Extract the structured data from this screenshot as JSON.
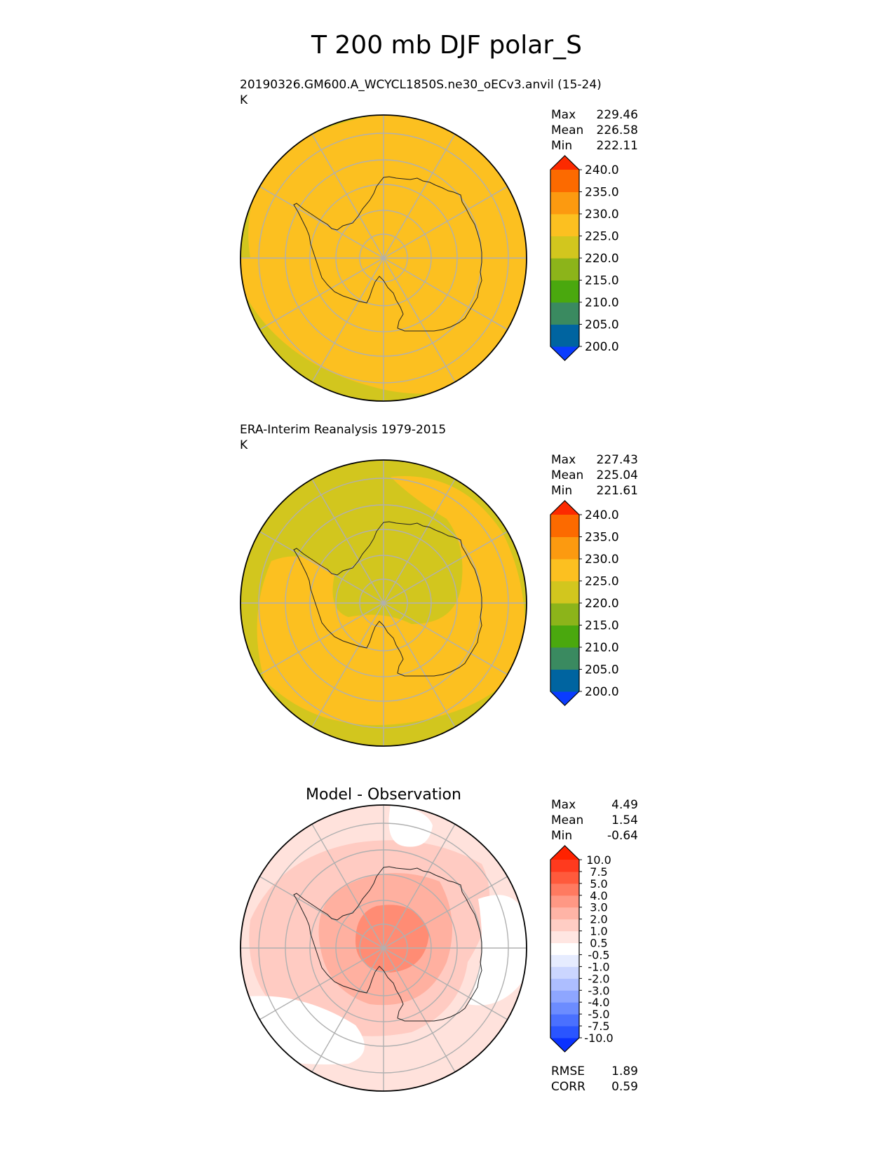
{
  "figure": {
    "title": "T 200 mb DJF polar_S"
  },
  "chart_data": [
    {
      "type": "heatmap",
      "projection": "south-polar-stereographic",
      "title": "20190326.GM600.A_WCYCL1850S.ne30_oECv3.anvil (15-24)",
      "units": "K",
      "stats": [
        {
          "label": "Max",
          "value": "229.46"
        },
        {
          "label": "Mean",
          "value": "226.58"
        },
        {
          "label": "Min",
          "value": "222.11"
        }
      ],
      "colorbar": {
        "levels": [
          "200.0",
          "205.0",
          "210.0",
          "215.0",
          "220.0",
          "225.0",
          "230.0",
          "235.0",
          "240.0"
        ],
        "colors": [
          "#0a3cff",
          "#0064a0",
          "#3a8a60",
          "#4aa80e",
          "#8cb41a",
          "#d2c61e",
          "#fcc020",
          "#fc9a10",
          "#fc6a00",
          "#fc2a00"
        ],
        "extend": "both"
      },
      "field_description_colors": {
        "background": "#fcc020",
        "ring": "#d2c61e"
      }
    },
    {
      "type": "heatmap",
      "projection": "south-polar-stereographic",
      "title": "ERA-Interim Reanalysis 1979-2015",
      "units": "K",
      "stats": [
        {
          "label": "Max",
          "value": "227.43"
        },
        {
          "label": "Mean",
          "value": "225.04"
        },
        {
          "label": "Min",
          "value": "221.61"
        }
      ],
      "colorbar": {
        "levels": [
          "200.0",
          "205.0",
          "210.0",
          "215.0",
          "220.0",
          "225.0",
          "230.0",
          "235.0",
          "240.0"
        ],
        "colors": [
          "#0a3cff",
          "#0064a0",
          "#3a8a60",
          "#4aa80e",
          "#8cb41a",
          "#d2c61e",
          "#fcc020",
          "#fc9a10",
          "#fc6a00",
          "#fc2a00"
        ],
        "extend": "both"
      },
      "field_description_colors": {
        "background": "#d2c61e",
        "warm": "#fcc020"
      }
    },
    {
      "type": "heatmap",
      "projection": "south-polar-stereographic",
      "title": "Model - Observation",
      "units": "",
      "stats": [
        {
          "label": "Max",
          "value": "4.49"
        },
        {
          "label": "Mean",
          "value": "1.54"
        },
        {
          "label": "Min",
          "value": "-0.64"
        }
      ],
      "extra_stats": [
        {
          "label": "RMSE",
          "value": "1.89"
        },
        {
          "label": "CORR",
          "value": "0.59"
        }
      ],
      "colorbar": {
        "levels": [
          "-10.0",
          "-7.5",
          "-5.0",
          "-4.0",
          "-3.0",
          "-2.0",
          "-1.0",
          "-0.5",
          "0.5",
          "1.0",
          "2.0",
          "3.0",
          "4.0",
          "5.0",
          "7.5",
          "10.0"
        ],
        "colors": [
          "#0a32ff",
          "#2a55ff",
          "#4a70ff",
          "#6c8cff",
          "#8ea6ff",
          "#adbeff",
          "#cbd6ff",
          "#e6ecff",
          "#ffffff",
          "#ffe6e2",
          "#ffcdc4",
          "#ffb4a6",
          "#ff9884",
          "#ff7a60",
          "#ff5a3c",
          "#ff3a1e",
          "#ff2200"
        ],
        "extend": "both"
      },
      "field_description_colors": {
        "background": "#ffe2dc",
        "light": "#ffcbc2",
        "mid": "#ffb0a0",
        "strong": "#ff8c74",
        "neutral": "#ffffff"
      }
    }
  ]
}
